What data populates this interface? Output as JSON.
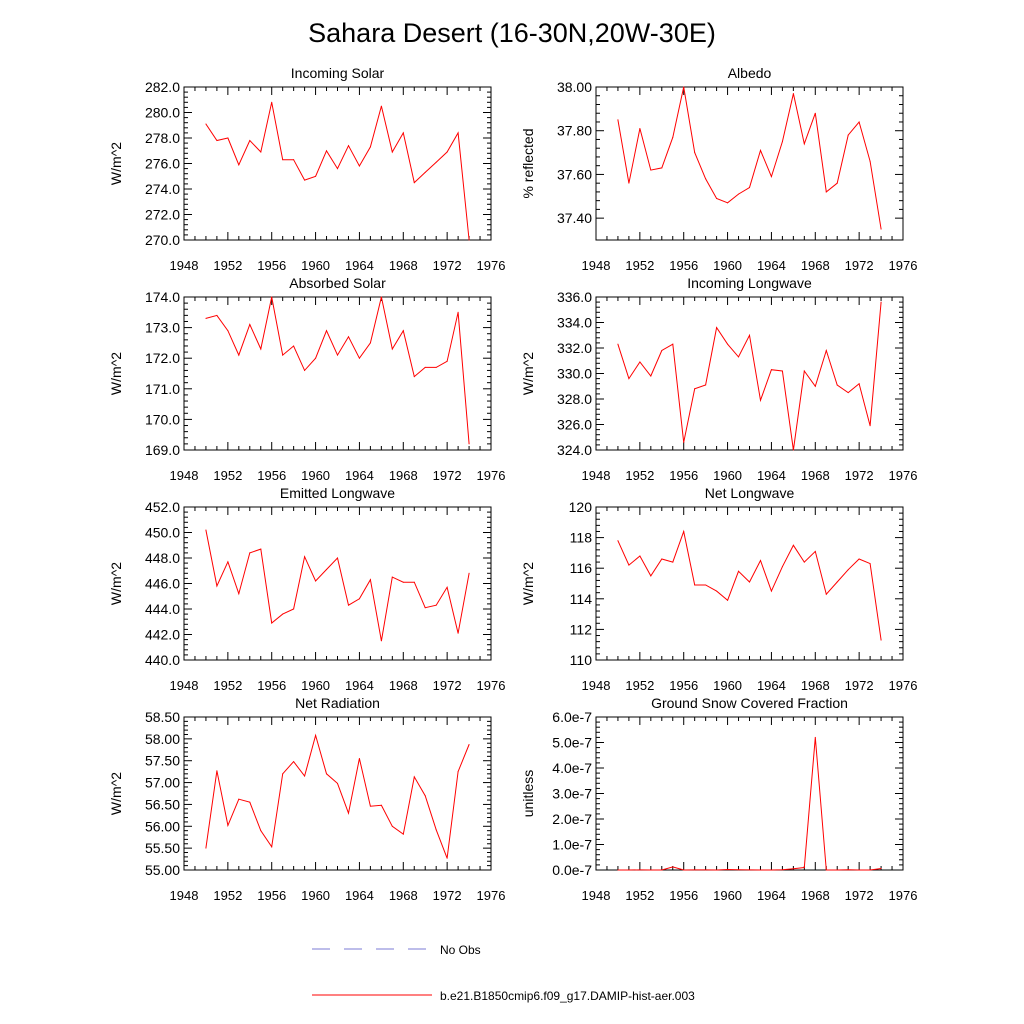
{
  "figure_title": "Sahara Desert (16-30N,20W-30E)",
  "legend": {
    "obs_label": "No Obs",
    "obs_color": "#7b7bd6",
    "model_label": "b.e21.B1850cmip6.f09_g17.DAMIP-hist-aer.003",
    "model_color": "#ff0000"
  },
  "chart_data": [
    {
      "type": "line",
      "title": "Incoming Solar",
      "ylabel": "W/m^2",
      "xlim": [
        1948,
        1976
      ],
      "xticks": [
        1948,
        1952,
        1956,
        1960,
        1964,
        1968,
        1972,
        1976
      ],
      "ylim": [
        270,
        282
      ],
      "yticks": [
        "270.0",
        "272.0",
        "274.0",
        "276.0",
        "278.0",
        "280.0",
        "282.0"
      ],
      "x": [
        1950,
        1951,
        1952,
        1953,
        1954,
        1955,
        1956,
        1957,
        1958,
        1959,
        1960,
        1961,
        1962,
        1963,
        1964,
        1965,
        1966,
        1967,
        1968,
        1969,
        1970,
        1971,
        1972,
        1973,
        1974
      ],
      "series": [
        {
          "values": [
            279.1,
            277.8,
            278.0,
            275.9,
            277.8,
            276.9,
            280.8,
            276.3,
            276.3,
            274.7,
            275.0,
            277.0,
            275.6,
            277.4,
            275.8,
            277.3,
            280.5,
            276.9,
            278.4,
            274.5,
            275.3,
            276.1,
            276.9,
            278.4,
            270.0
          ],
          "color": "#ff0000"
        }
      ]
    },
    {
      "type": "line",
      "title": "Albedo",
      "ylabel": "% reflected",
      "xlim": [
        1948,
        1976
      ],
      "xticks": [
        1948,
        1952,
        1956,
        1960,
        1964,
        1968,
        1972,
        1976
      ],
      "ylim": [
        37.3,
        38.0
      ],
      "yticks": [
        "37.40",
        "37.60",
        "37.80",
        "38.00"
      ],
      "x": [
        1950,
        1951,
        1952,
        1953,
        1954,
        1955,
        1956,
        1957,
        1958,
        1959,
        1960,
        1961,
        1962,
        1963,
        1964,
        1965,
        1966,
        1967,
        1968,
        1969,
        1970,
        1971,
        1972,
        1973,
        1974
      ],
      "series": [
        {
          "values": [
            37.85,
            37.56,
            37.81,
            37.62,
            37.63,
            37.77,
            38.0,
            37.7,
            37.58,
            37.49,
            37.47,
            37.51,
            37.54,
            37.71,
            37.59,
            37.75,
            37.97,
            37.74,
            37.88,
            37.52,
            37.56,
            37.78,
            37.84,
            37.66,
            37.35
          ],
          "color": "#ff0000"
        }
      ]
    },
    {
      "type": "line",
      "title": "Absorbed Solar",
      "ylabel": "W/m^2",
      "xlim": [
        1948,
        1976
      ],
      "xticks": [
        1948,
        1952,
        1956,
        1960,
        1964,
        1968,
        1972,
        1976
      ],
      "ylim": [
        169,
        174
      ],
      "yticks": [
        "169.0",
        "170.0",
        "171.0",
        "172.0",
        "173.0",
        "174.0"
      ],
      "x": [
        1950,
        1951,
        1952,
        1953,
        1954,
        1955,
        1956,
        1957,
        1958,
        1959,
        1960,
        1961,
        1962,
        1963,
        1964,
        1965,
        1966,
        1967,
        1968,
        1969,
        1970,
        1971,
        1972,
        1973,
        1974
      ],
      "series": [
        {
          "values": [
            173.3,
            173.4,
            172.9,
            172.1,
            173.1,
            172.3,
            174.0,
            172.1,
            172.4,
            171.6,
            172.0,
            172.9,
            172.1,
            172.7,
            172.0,
            172.5,
            174.0,
            172.3,
            172.9,
            171.4,
            171.7,
            171.7,
            171.9,
            173.5,
            169.2
          ],
          "color": "#ff0000"
        }
      ]
    },
    {
      "type": "line",
      "title": "Incoming Longwave",
      "ylabel": "W/m^2",
      "xlim": [
        1948,
        1976
      ],
      "xticks": [
        1948,
        1952,
        1956,
        1960,
        1964,
        1968,
        1972,
        1976
      ],
      "ylim": [
        324,
        336
      ],
      "yticks": [
        "324.0",
        "326.0",
        "328.0",
        "330.0",
        "332.0",
        "334.0",
        "336.0"
      ],
      "x": [
        1950,
        1951,
        1952,
        1953,
        1954,
        1955,
        1956,
        1957,
        1958,
        1959,
        1960,
        1961,
        1962,
        1963,
        1964,
        1965,
        1966,
        1967,
        1968,
        1969,
        1970,
        1971,
        1972,
        1973,
        1974
      ],
      "series": [
        {
          "values": [
            332.3,
            329.6,
            330.9,
            329.8,
            331.8,
            332.3,
            324.6,
            328.8,
            329.1,
            333.6,
            332.3,
            331.3,
            333.0,
            327.9,
            330.3,
            330.2,
            324.0,
            330.2,
            329.0,
            331.8,
            329.1,
            328.5,
            329.2,
            325.9,
            335.6
          ],
          "color": "#ff0000"
        }
      ]
    },
    {
      "type": "line",
      "title": "Emitted Longwave",
      "ylabel": "W/m^2",
      "xlim": [
        1948,
        1976
      ],
      "xticks": [
        1948,
        1952,
        1956,
        1960,
        1964,
        1968,
        1972,
        1976
      ],
      "ylim": [
        440,
        452
      ],
      "yticks": [
        "440.0",
        "442.0",
        "444.0",
        "446.0",
        "448.0",
        "450.0",
        "452.0"
      ],
      "x": [
        1950,
        1951,
        1952,
        1953,
        1954,
        1955,
        1956,
        1957,
        1958,
        1959,
        1960,
        1961,
        1962,
        1963,
        1964,
        1965,
        1966,
        1967,
        1968,
        1969,
        1970,
        1971,
        1972,
        1973,
        1974
      ],
      "series": [
        {
          "values": [
            450.2,
            445.8,
            447.7,
            445.2,
            448.4,
            448.7,
            442.9,
            443.6,
            444.0,
            448.1,
            446.2,
            447.1,
            448.0,
            444.3,
            444.8,
            446.3,
            441.5,
            446.5,
            446.1,
            446.1,
            444.1,
            444.3,
            445.7,
            442.1,
            446.8
          ],
          "color": "#ff0000"
        }
      ]
    },
    {
      "type": "line",
      "title": "Net Longwave",
      "ylabel": "W/m^2",
      "xlim": [
        1948,
        1976
      ],
      "xticks": [
        1948,
        1952,
        1956,
        1960,
        1964,
        1968,
        1972,
        1976
      ],
      "ylim": [
        110,
        120
      ],
      "yticks": [
        "110",
        "112",
        "114",
        "116",
        "118",
        "120"
      ],
      "x": [
        1950,
        1951,
        1952,
        1953,
        1954,
        1955,
        1956,
        1957,
        1958,
        1959,
        1960,
        1961,
        1962,
        1963,
        1964,
        1965,
        1966,
        1967,
        1968,
        1969,
        1970,
        1971,
        1972,
        1973,
        1974
      ],
      "series": [
        {
          "values": [
            117.8,
            116.2,
            116.8,
            115.5,
            116.6,
            116.4,
            118.4,
            114.9,
            114.9,
            114.5,
            113.9,
            115.8,
            115.1,
            116.5,
            114.5,
            116.1,
            117.5,
            116.4,
            117.1,
            114.3,
            115.1,
            115.9,
            116.6,
            116.3,
            111.3
          ],
          "color": "#ff0000"
        }
      ]
    },
    {
      "type": "line",
      "title": "Net Radiation",
      "ylabel": "W/m^2",
      "xlim": [
        1948,
        1976
      ],
      "xticks": [
        1948,
        1952,
        1956,
        1960,
        1964,
        1968,
        1972,
        1976
      ],
      "ylim": [
        55.0,
        58.5
      ],
      "yticks": [
        "55.00",
        "55.50",
        "56.00",
        "56.50",
        "57.00",
        "57.50",
        "58.00",
        "58.50"
      ],
      "x": [
        1950,
        1951,
        1952,
        1953,
        1954,
        1955,
        1956,
        1957,
        1958,
        1959,
        1960,
        1961,
        1962,
        1963,
        1964,
        1965,
        1966,
        1967,
        1968,
        1969,
        1970,
        1971,
        1972,
        1973,
        1974
      ],
      "series": [
        {
          "values": [
            55.5,
            57.27,
            56.02,
            56.62,
            56.55,
            55.9,
            55.53,
            57.2,
            57.48,
            57.15,
            58.08,
            57.2,
            56.98,
            56.3,
            57.55,
            56.46,
            56.48,
            56.0,
            55.82,
            57.13,
            56.7,
            55.92,
            55.27,
            57.25,
            57.87
          ],
          "color": "#ff0000"
        }
      ]
    },
    {
      "type": "line",
      "title": "Ground Snow Covered Fraction",
      "ylabel": "unitless",
      "xlim": [
        1948,
        1976
      ],
      "xticks": [
        1948,
        1952,
        1956,
        1960,
        1964,
        1968,
        1972,
        1976
      ],
      "ylim": [
        0,
        6e-07
      ],
      "yticks": [
        "0.0e-7",
        "1.0e-7",
        "2.0e-7",
        "3.0e-7",
        "4.0e-7",
        "5.0e-7",
        "6.0e-7"
      ],
      "x": [
        1950,
        1951,
        1952,
        1953,
        1954,
        1955,
        1956,
        1957,
        1958,
        1959,
        1960,
        1961,
        1962,
        1963,
        1964,
        1965,
        1966,
        1967,
        1968,
        1969,
        1970,
        1971,
        1972,
        1973,
        1974
      ],
      "series": [
        {
          "values": [
            0,
            0,
            2e-10,
            0,
            0,
            1.2e-08,
            0,
            5e-10,
            2e-10,
            0,
            2e-09,
            1e-09,
            5e-10,
            0,
            0,
            1e-09,
            5e-09,
            1e-08,
            5.2e-07,
            0,
            0,
            1e-09,
            0,
            0,
            6e-09
          ],
          "color": "#ff0000"
        }
      ]
    }
  ]
}
